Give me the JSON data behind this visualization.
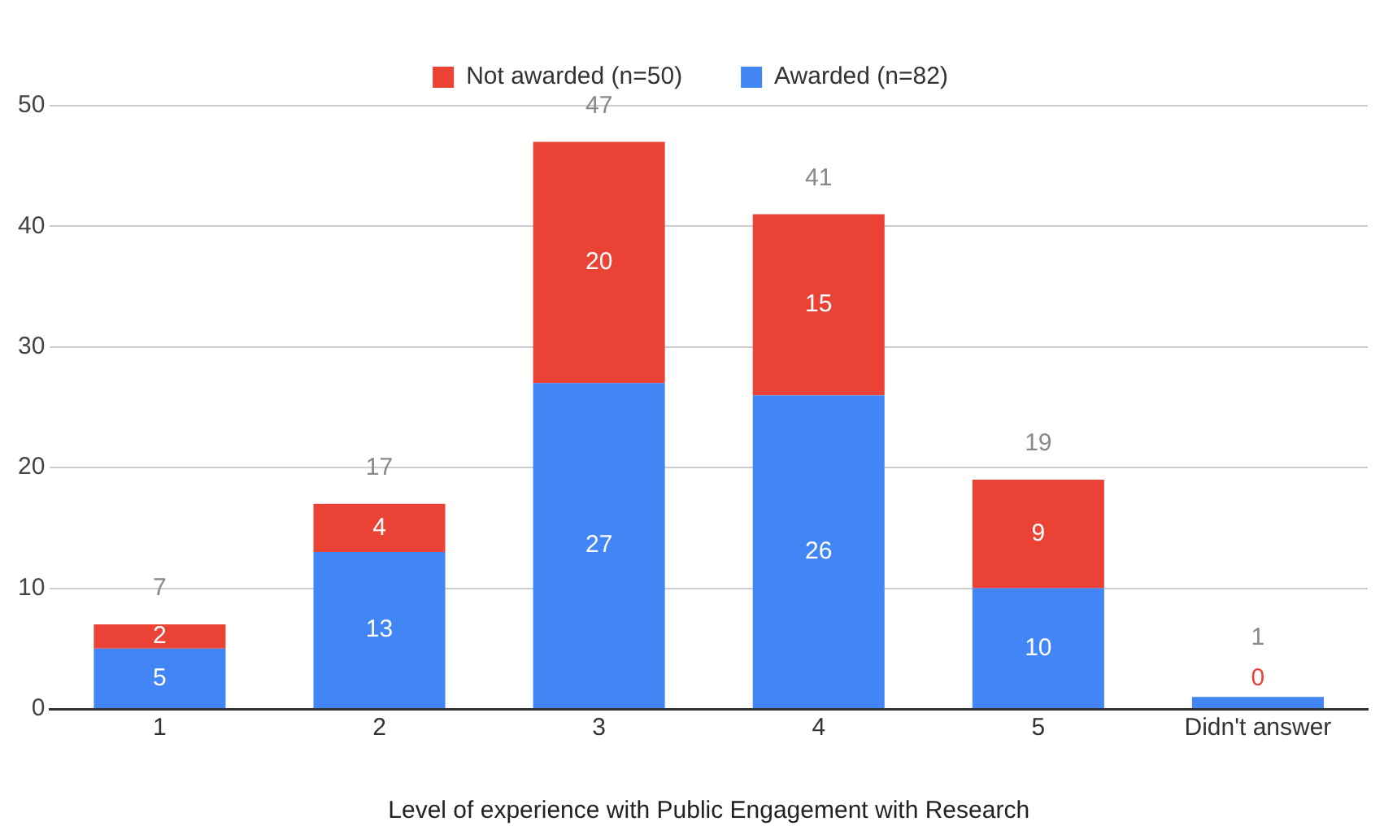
{
  "chart_data": {
    "type": "bar",
    "stacked": true,
    "xlabel": "Level of experience with Public Engagement with Research",
    "categories": [
      "1",
      "2",
      "3",
      "4",
      "5",
      "Didn't answer"
    ],
    "series": [
      {
        "name": "Awarded (n=82)",
        "color": "#4285f4",
        "values": [
          5,
          13,
          27,
          26,
          10,
          1
        ],
        "value_labels": [
          "5",
          "13",
          "27",
          "26",
          "10",
          null
        ]
      },
      {
        "name": "Not awarded (n=50)",
        "color": "#ea4335",
        "values": [
          2,
          4,
          20,
          15,
          9,
          0
        ],
        "value_labels": [
          "2",
          "4",
          "20",
          "15",
          "9",
          "0"
        ]
      }
    ],
    "ylim": [
      0,
      50
    ],
    "yticks": [
      0,
      10,
      20,
      30,
      40,
      50
    ],
    "grid": "y",
    "legend": "top",
    "totals": [
      "7",
      "17",
      "47",
      "41",
      "19",
      "1"
    ]
  }
}
